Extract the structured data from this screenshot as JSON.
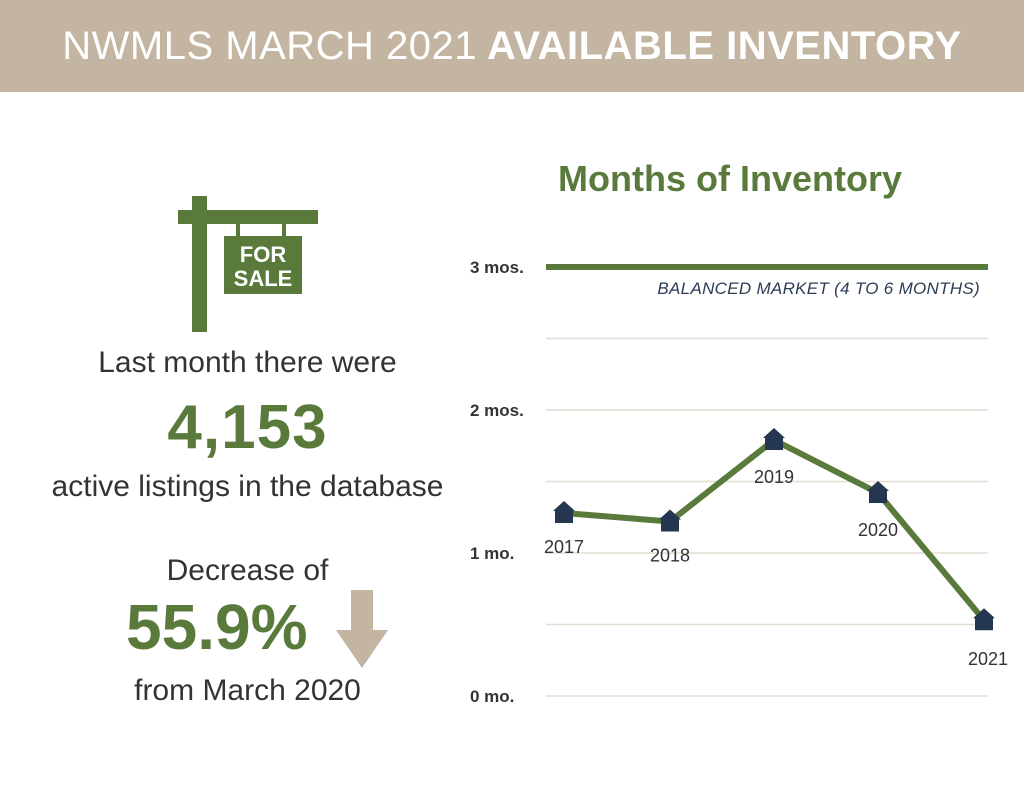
{
  "header": {
    "title_light": "NWMLS MARCH 2021",
    "title_bold": "AVAILABLE INVENTORY"
  },
  "sign": {
    "line1": "FOR",
    "line2": "SALE",
    "icon": "for-sale-sign-icon"
  },
  "stats": {
    "last_month_text": "Last month there were",
    "active_count": "4,153",
    "active_text": "active listings in the database",
    "decrease_text": "Decrease of",
    "decrease_pct": "55.9%",
    "decrease_icon": "down-arrow-icon",
    "from_text": "from March 2020"
  },
  "colors": {
    "banner": "#c3b5a1",
    "accent_green": "#5a7a3c",
    "marker_navy": "#243650",
    "arrow_tan": "#c3b5a1",
    "grid": "#e3ddd2"
  },
  "chart_data": {
    "type": "line",
    "title": "Months of Inventory",
    "y_ticks": [
      {
        "value": 0,
        "label": "0 mo."
      },
      {
        "value": 1,
        "label": "1 mo."
      },
      {
        "value": 2,
        "label": "2 mos."
      },
      {
        "value": 3,
        "label": "3 mos."
      }
    ],
    "ylim": [
      0,
      3
    ],
    "grid": true,
    "reference_line": {
      "value": 3,
      "label": "BALANCED MARKET (4 TO 6 MONTHS)"
    },
    "marker": "house-icon",
    "series": [
      {
        "points": [
          {
            "x": "2017",
            "y": 1.28
          },
          {
            "x": "2018",
            "y": 1.22
          },
          {
            "x": "2019",
            "y": 1.79
          },
          {
            "x": "2020",
            "y": 1.42
          },
          {
            "x": "2021",
            "y": 0.53
          }
        ]
      }
    ]
  }
}
